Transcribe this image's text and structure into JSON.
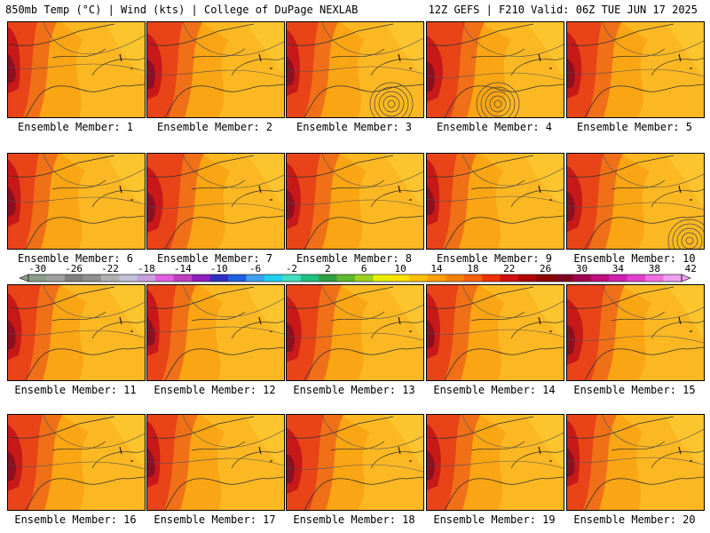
{
  "header": {
    "left_title": "850mb Temp (°C) | Wind (kts) | College of DuPage NEXLAB",
    "right_title": "12Z GEFS | F210 Valid: 06Z TUE JUN 17 2025"
  },
  "members": [
    {
      "label": "Ensemble Member: 1",
      "low": false
    },
    {
      "label": "Ensemble Member: 2",
      "low": false
    },
    {
      "label": "Ensemble Member: 3",
      "low": true
    },
    {
      "label": "Ensemble Member: 4",
      "low": true
    },
    {
      "label": "Ensemble Member: 5",
      "low": false
    },
    {
      "label": "Ensemble Member: 6",
      "low": false
    },
    {
      "label": "Ensemble Member: 7",
      "low": false
    },
    {
      "label": "Ensemble Member: 8",
      "low": false
    },
    {
      "label": "Ensemble Member: 9",
      "low": false
    },
    {
      "label": "Ensemble Member: 10",
      "low": true
    },
    {
      "label": "Ensemble Member: 11",
      "low": false
    },
    {
      "label": "Ensemble Member: 12",
      "low": false
    },
    {
      "label": "Ensemble Member: 13",
      "low": false
    },
    {
      "label": "Ensemble Member: 14",
      "low": false
    },
    {
      "label": "Ensemble Member: 15",
      "low": false
    },
    {
      "label": "Ensemble Member: 16",
      "low": false
    },
    {
      "label": "Ensemble Member: 17",
      "low": false
    },
    {
      "label": "Ensemble Member: 18",
      "low": false
    },
    {
      "label": "Ensemble Member: 19",
      "low": false
    },
    {
      "label": "Ensemble Member: 20",
      "low": false
    }
  ],
  "colorbar": {
    "ticks": [
      "-30",
      "-26",
      "-22",
      "-18",
      "-14",
      "-10",
      "-6",
      "-2",
      "2",
      "6",
      "10",
      "14",
      "18",
      "22",
      "26",
      "30",
      "34",
      "38",
      "42"
    ],
    "colors": [
      "#8a9e8a",
      "#a0a0a0",
      "#7f7f7f",
      "#8f8f8f",
      "#b0b0b0",
      "#c0c0d8",
      "#c8a0e0",
      "#e060e0",
      "#c040c0",
      "#9020c0",
      "#3030c0",
      "#2060e0",
      "#40a0f0",
      "#20d0f0",
      "#40e0c0",
      "#20c080",
      "#30a040",
      "#60b830",
      "#a0d020",
      "#e8f000",
      "#ffe000",
      "#ffc000",
      "#ffa000",
      "#ff8000",
      "#ff6000",
      "#f03000",
      "#d01010",
      "#b00000",
      "#8c0000",
      "#800020",
      "#a00050",
      "#c01080",
      "#d020b0",
      "#e040d0",
      "#f070e0",
      "#f0a0f0"
    ]
  }
}
